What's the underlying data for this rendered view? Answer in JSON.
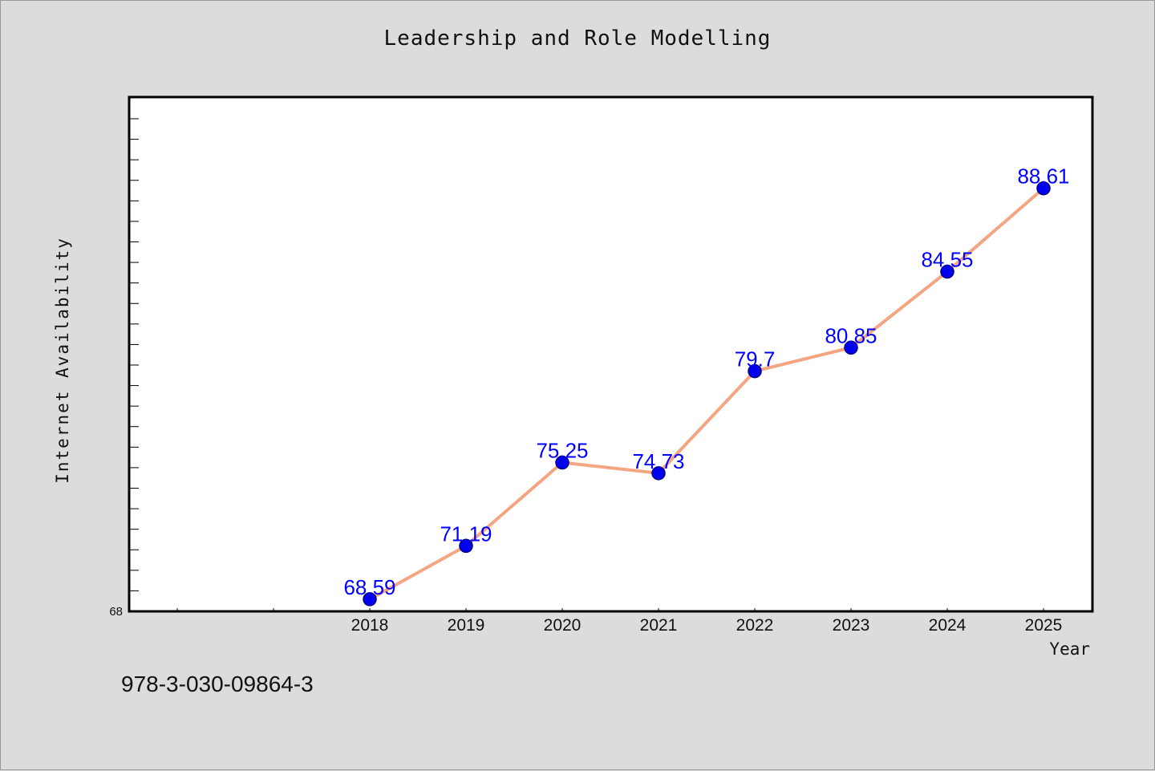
{
  "chart_data": {
    "type": "line",
    "title": "Leadership and Role Modelling",
    "xlabel": "Year",
    "ylabel": "Internet Availability",
    "categories": [
      "2018",
      "2019",
      "2020",
      "2021",
      "2022",
      "2023",
      "2024",
      "2025"
    ],
    "series": [
      {
        "values": [
          68.59,
          71.19,
          75.25,
          74.73,
          79.7,
          80.85,
          84.55,
          88.61
        ],
        "labels": [
          "68.59",
          "71.19",
          "75.25",
          "74.73",
          "79.7",
          "80.85",
          "84.55",
          "88.61"
        ]
      }
    ],
    "ylim": [
      68,
      92
    ],
    "y_tick_labels": [
      "68"
    ],
    "grid": false,
    "colors": {
      "line": "#f4a582",
      "marker": "#0000ee",
      "marker_edge": "#000080",
      "data_label": "#0000ff"
    }
  },
  "footnote": "978-3-030-09864-3"
}
